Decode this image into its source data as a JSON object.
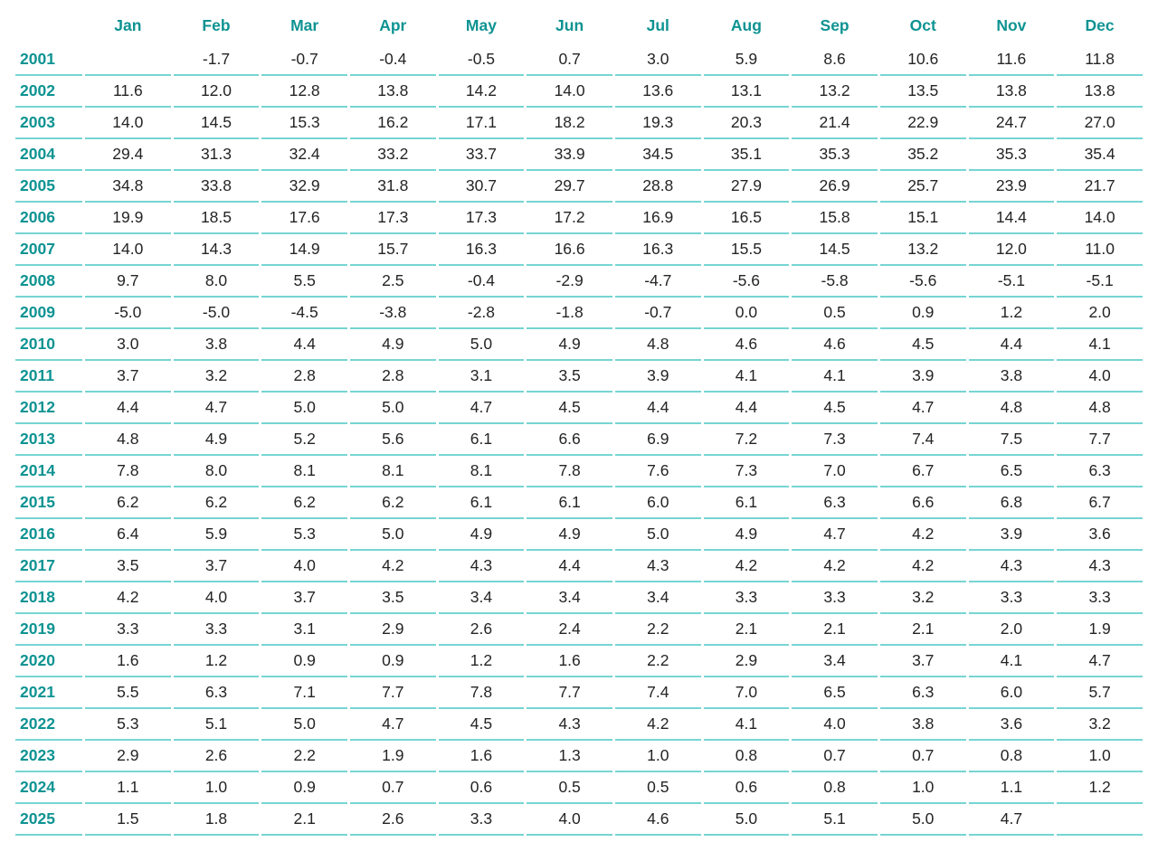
{
  "colors": {
    "accent_teal": "#0E9392",
    "row_line_teal": "#76D5D3",
    "value_text": "#242424",
    "background": "#FFFFFF"
  },
  "table": {
    "corner_label": "",
    "columns": [
      "Jan",
      "Feb",
      "Mar",
      "Apr",
      "May",
      "Jun",
      "Jul",
      "Aug",
      "Sep",
      "Oct",
      "Nov",
      "Dec"
    ],
    "rows": [
      {
        "year": "2001",
        "values": [
          "",
          "-1.7",
          "-0.7",
          "-0.4",
          "-0.5",
          "0.7",
          "3.0",
          "5.9",
          "8.6",
          "10.6",
          "11.6",
          "11.8"
        ]
      },
      {
        "year": "2002",
        "values": [
          "11.6",
          "12.0",
          "12.8",
          "13.8",
          "14.2",
          "14.0",
          "13.6",
          "13.1",
          "13.2",
          "13.5",
          "13.8",
          "13.8"
        ]
      },
      {
        "year": "2003",
        "values": [
          "14.0",
          "14.5",
          "15.3",
          "16.2",
          "17.1",
          "18.2",
          "19.3",
          "20.3",
          "21.4",
          "22.9",
          "24.7",
          "27.0"
        ]
      },
      {
        "year": "2004",
        "values": [
          "29.4",
          "31.3",
          "32.4",
          "33.2",
          "33.7",
          "33.9",
          "34.5",
          "35.1",
          "35.3",
          "35.2",
          "35.3",
          "35.4"
        ]
      },
      {
        "year": "2005",
        "values": [
          "34.8",
          "33.8",
          "32.9",
          "31.8",
          "30.7",
          "29.7",
          "28.8",
          "27.9",
          "26.9",
          "25.7",
          "23.9",
          "21.7"
        ]
      },
      {
        "year": "2006",
        "values": [
          "19.9",
          "18.5",
          "17.6",
          "17.3",
          "17.3",
          "17.2",
          "16.9",
          "16.5",
          "15.8",
          "15.1",
          "14.4",
          "14.0"
        ]
      },
      {
        "year": "2007",
        "values": [
          "14.0",
          "14.3",
          "14.9",
          "15.7",
          "16.3",
          "16.6",
          "16.3",
          "15.5",
          "14.5",
          "13.2",
          "12.0",
          "11.0"
        ]
      },
      {
        "year": "2008",
        "values": [
          "9.7",
          "8.0",
          "5.5",
          "2.5",
          "-0.4",
          "-2.9",
          "-4.7",
          "-5.6",
          "-5.8",
          "-5.6",
          "-5.1",
          "-5.1"
        ]
      },
      {
        "year": "2009",
        "values": [
          "-5.0",
          "-5.0",
          "-4.5",
          "-3.8",
          "-2.8",
          "-1.8",
          "-0.7",
          "0.0",
          "0.5",
          "0.9",
          "1.2",
          "2.0"
        ]
      },
      {
        "year": "2010",
        "values": [
          "3.0",
          "3.8",
          "4.4",
          "4.9",
          "5.0",
          "4.9",
          "4.8",
          "4.6",
          "4.6",
          "4.5",
          "4.4",
          "4.1"
        ]
      },
      {
        "year": "2011",
        "values": [
          "3.7",
          "3.2",
          "2.8",
          "2.8",
          "3.1",
          "3.5",
          "3.9",
          "4.1",
          "4.1",
          "3.9",
          "3.8",
          "4.0"
        ]
      },
      {
        "year": "2012",
        "values": [
          "4.4",
          "4.7",
          "5.0",
          "5.0",
          "4.7",
          "4.5",
          "4.4",
          "4.4",
          "4.5",
          "4.7",
          "4.8",
          "4.8"
        ]
      },
      {
        "year": "2013",
        "values": [
          "4.8",
          "4.9",
          "5.2",
          "5.6",
          "6.1",
          "6.6",
          "6.9",
          "7.2",
          "7.3",
          "7.4",
          "7.5",
          "7.7"
        ]
      },
      {
        "year": "2014",
        "values": [
          "7.8",
          "8.0",
          "8.1",
          "8.1",
          "8.1",
          "7.8",
          "7.6",
          "7.3",
          "7.0",
          "6.7",
          "6.5",
          "6.3"
        ]
      },
      {
        "year": "2015",
        "values": [
          "6.2",
          "6.2",
          "6.2",
          "6.2",
          "6.1",
          "6.1",
          "6.0",
          "6.1",
          "6.3",
          "6.6",
          "6.8",
          "6.7"
        ]
      },
      {
        "year": "2016",
        "values": [
          "6.4",
          "5.9",
          "5.3",
          "5.0",
          "4.9",
          "4.9",
          "5.0",
          "4.9",
          "4.7",
          "4.2",
          "3.9",
          "3.6"
        ]
      },
      {
        "year": "2017",
        "values": [
          "3.5",
          "3.7",
          "4.0",
          "4.2",
          "4.3",
          "4.4",
          "4.3",
          "4.2",
          "4.2",
          "4.2",
          "4.3",
          "4.3"
        ]
      },
      {
        "year": "2018",
        "values": [
          "4.2",
          "4.0",
          "3.7",
          "3.5",
          "3.4",
          "3.4",
          "3.4",
          "3.3",
          "3.3",
          "3.2",
          "3.3",
          "3.3"
        ]
      },
      {
        "year": "2019",
        "values": [
          "3.3",
          "3.3",
          "3.1",
          "2.9",
          "2.6",
          "2.4",
          "2.2",
          "2.1",
          "2.1",
          "2.1",
          "2.0",
          "1.9"
        ]
      },
      {
        "year": "2020",
        "values": [
          "1.6",
          "1.2",
          "0.9",
          "0.9",
          "1.2",
          "1.6",
          "2.2",
          "2.9",
          "3.4",
          "3.7",
          "4.1",
          "4.7"
        ]
      },
      {
        "year": "2021",
        "values": [
          "5.5",
          "6.3",
          "7.1",
          "7.7",
          "7.8",
          "7.7",
          "7.4",
          "7.0",
          "6.5",
          "6.3",
          "6.0",
          "5.7"
        ]
      },
      {
        "year": "2022",
        "values": [
          "5.3",
          "5.1",
          "5.0",
          "4.7",
          "4.5",
          "4.3",
          "4.2",
          "4.1",
          "4.0",
          "3.8",
          "3.6",
          "3.2"
        ]
      },
      {
        "year": "2023",
        "values": [
          "2.9",
          "2.6",
          "2.2",
          "1.9",
          "1.6",
          "1.3",
          "1.0",
          "0.8",
          "0.7",
          "0.7",
          "0.8",
          "1.0"
        ]
      },
      {
        "year": "2024",
        "values": [
          "1.1",
          "1.0",
          "0.9",
          "0.7",
          "0.6",
          "0.5",
          "0.5",
          "0.6",
          "0.8",
          "1.0",
          "1.1",
          "1.2"
        ]
      },
      {
        "year": "2025",
        "values": [
          "1.5",
          "1.8",
          "2.1",
          "2.6",
          "3.3",
          "4.0",
          "4.6",
          "5.0",
          "5.1",
          "5.0",
          "4.7",
          ""
        ]
      }
    ]
  }
}
